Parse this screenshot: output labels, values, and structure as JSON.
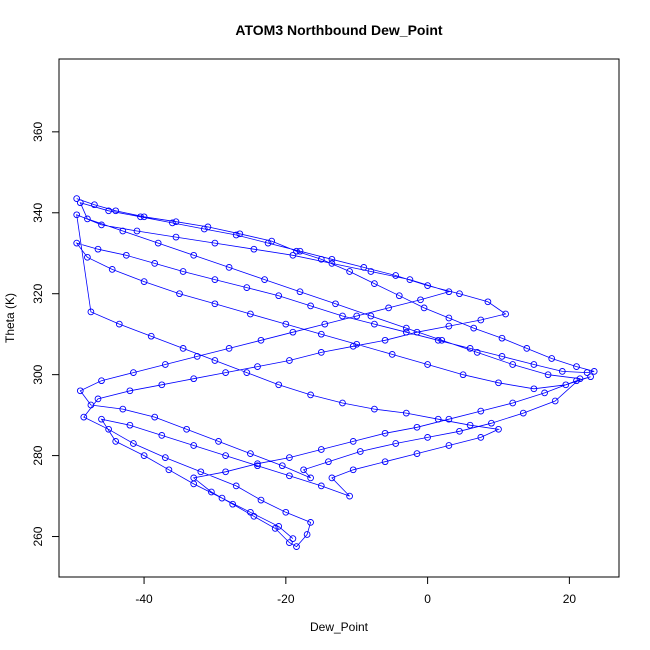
{
  "chart_data": {
    "type": "scatter",
    "title": "ATOM3 Northbound Dew_Point",
    "xlabel": "Dew_Point",
    "ylabel": "Theta (K)",
    "xlim": [
      -52,
      27
    ],
    "ylim": [
      250,
      378
    ],
    "x_ticks": [
      -40,
      -20,
      0,
      20
    ],
    "y_ticks": [
      260,
      280,
      300,
      320,
      340,
      360
    ],
    "x_tick_labels": [
      "-40",
      "-20",
      "0",
      "20"
    ],
    "y_tick_labels": [
      "260",
      "280",
      "300",
      "320",
      "340",
      "360"
    ],
    "grid": false,
    "legend": "none",
    "style": "points connected by lines (open circles)",
    "color": "#0000ff",
    "series": [
      {
        "points": [
          [
            -49.5,
            343.5
          ],
          [
            -47.0,
            342.0
          ],
          [
            -44.0,
            340.5
          ],
          [
            -40.0,
            339.0
          ],
          [
            -35.5,
            337.8
          ],
          [
            -31.0,
            336.5
          ],
          [
            -26.5,
            334.8
          ],
          [
            -22.0,
            333.0
          ],
          [
            -18.5,
            330.5
          ],
          [
            -15.0,
            328.5
          ],
          [
            -11.0,
            325.5
          ],
          [
            -7.5,
            322.5
          ],
          [
            -4.0,
            319.5
          ],
          [
            -0.5,
            316.5
          ],
          [
            3.0,
            314.0
          ],
          [
            6.5,
            311.5
          ],
          [
            10.5,
            309.0
          ],
          [
            14.0,
            306.5
          ],
          [
            17.5,
            304.0
          ],
          [
            21.0,
            302.0
          ],
          [
            23.5,
            300.8
          ],
          [
            22.5,
            300.5
          ],
          [
            19.0,
            300.8
          ],
          [
            15.0,
            302.5
          ],
          [
            10.5,
            304.5
          ],
          [
            6.0,
            306.5
          ],
          [
            1.5,
            308.5
          ],
          [
            -3.0,
            310.5
          ],
          [
            -7.5,
            312.5
          ],
          [
            -12.0,
            314.5
          ],
          [
            -16.5,
            317.0
          ],
          [
            -21.0,
            319.5
          ],
          [
            -25.5,
            321.5
          ],
          [
            -30.0,
            323.5
          ],
          [
            -34.5,
            325.5
          ],
          [
            -38.5,
            327.5
          ],
          [
            -42.5,
            329.5
          ],
          [
            -46.5,
            331.0
          ],
          [
            -49.5,
            332.5
          ],
          [
            -48.0,
            329.0
          ],
          [
            -44.5,
            326.0
          ],
          [
            -40.0,
            323.0
          ],
          [
            -35.0,
            320.0
          ],
          [
            -30.0,
            317.5
          ],
          [
            -25.0,
            315.0
          ],
          [
            -20.0,
            312.5
          ],
          [
            -15.0,
            310.0
          ],
          [
            -10.0,
            307.5
          ],
          [
            -5.0,
            305.0
          ],
          [
            0.0,
            302.5
          ],
          [
            5.0,
            300.0
          ],
          [
            10.0,
            298.0
          ],
          [
            15.0,
            296.5
          ],
          [
            19.5,
            297.5
          ],
          [
            23.0,
            299.5
          ],
          [
            21.0,
            298.5
          ],
          [
            16.5,
            295.5
          ],
          [
            12.0,
            293.0
          ],
          [
            7.5,
            291.0
          ],
          [
            3.0,
            289.0
          ],
          [
            -1.5,
            287.0
          ],
          [
            -6.0,
            285.5
          ],
          [
            -10.5,
            283.5
          ],
          [
            -15.0,
            281.5
          ],
          [
            -19.5,
            279.5
          ],
          [
            -24.0,
            278.0
          ],
          [
            -28.5,
            276.0
          ],
          [
            -33.0,
            274.5
          ],
          [
            -30.5,
            271.0
          ],
          [
            -27.5,
            268.0
          ],
          [
            -24.5,
            265.0
          ],
          [
            -21.5,
            262.0
          ],
          [
            -19.5,
            258.5
          ],
          [
            -18.5,
            257.5
          ],
          [
            -17.0,
            260.5
          ],
          [
            -16.5,
            263.5
          ],
          [
            -20.0,
            266.0
          ],
          [
            -23.5,
            269.0
          ],
          [
            -27.0,
            272.5
          ],
          [
            -32.0,
            276.0
          ],
          [
            -37.0,
            279.5
          ],
          [
            -41.5,
            283.0
          ],
          [
            -45.0,
            286.5
          ],
          [
            -48.5,
            289.5
          ],
          [
            -46.5,
            294.0
          ],
          [
            -42.0,
            296.0
          ],
          [
            -37.5,
            297.5
          ],
          [
            -33.0,
            299.0
          ],
          [
            -28.5,
            300.5
          ],
          [
            -24.0,
            302.0
          ],
          [
            -19.5,
            303.5
          ],
          [
            -15.0,
            305.5
          ],
          [
            -10.5,
            307.0
          ],
          [
            -6.0,
            308.5
          ],
          [
            -1.5,
            310.5
          ],
          [
            3.0,
            312.0
          ],
          [
            7.5,
            313.5
          ],
          [
            11.0,
            315.0
          ],
          [
            8.5,
            318.0
          ],
          [
            4.5,
            320.0
          ],
          [
            0.0,
            322.0
          ],
          [
            -4.5,
            324.5
          ],
          [
            -9.0,
            326.5
          ],
          [
            -13.5,
            328.5
          ],
          [
            -18.0,
            330.5
          ],
          [
            -22.5,
            332.5
          ],
          [
            -27.0,
            334.5
          ],
          [
            -31.5,
            336.0
          ],
          [
            -36.0,
            337.5
          ],
          [
            -40.5,
            339.0
          ],
          [
            -45.0,
            340.5
          ],
          [
            -49.0,
            342.5
          ],
          [
            -48.0,
            338.5
          ],
          [
            -43.0,
            335.5
          ],
          [
            -38.0,
            332.5
          ],
          [
            -33.0,
            329.5
          ],
          [
            -28.0,
            326.5
          ],
          [
            -23.0,
            323.5
          ],
          [
            -18.0,
            320.5
          ],
          [
            -13.0,
            317.5
          ],
          [
            -8.0,
            314.5
          ],
          [
            -3.0,
            311.5
          ],
          [
            2.0,
            308.5
          ],
          [
            7.0,
            305.5
          ],
          [
            12.0,
            302.5
          ],
          [
            17.0,
            300.0
          ],
          [
            21.5,
            299.0
          ],
          [
            18.0,
            293.5
          ],
          [
            13.5,
            290.5
          ],
          [
            9.0,
            288.0
          ],
          [
            4.5,
            286.0
          ],
          [
            0.0,
            284.5
          ],
          [
            -4.5,
            283.0
          ],
          [
            -9.5,
            281.0
          ],
          [
            -14.0,
            278.5
          ],
          [
            -17.5,
            276.5
          ],
          [
            -16.5,
            274.5
          ],
          [
            -20.5,
            277.5
          ],
          [
            -25.0,
            280.5
          ],
          [
            -29.5,
            283.5
          ],
          [
            -34.0,
            286.5
          ],
          [
            -38.5,
            289.5
          ],
          [
            -43.0,
            291.5
          ],
          [
            -47.5,
            292.5
          ],
          [
            -49.0,
            296.0
          ],
          [
            -46.0,
            298.5
          ],
          [
            -41.5,
            300.5
          ],
          [
            -37.0,
            302.5
          ],
          [
            -32.5,
            304.5
          ],
          [
            -28.0,
            306.5
          ],
          [
            -23.5,
            308.5
          ],
          [
            -19.0,
            310.5
          ],
          [
            -14.5,
            312.5
          ],
          [
            -10.0,
            314.5
          ],
          [
            -5.5,
            316.5
          ],
          [
            -1.0,
            318.5
          ],
          [
            3.0,
            320.5
          ],
          [
            -2.5,
            323.5
          ],
          [
            -8.0,
            325.5
          ],
          [
            -13.5,
            327.5
          ],
          [
            -19.0,
            329.5
          ],
          [
            -24.5,
            331.0
          ],
          [
            -30.0,
            332.5
          ],
          [
            -35.5,
            334.0
          ],
          [
            -41.0,
            335.5
          ],
          [
            -46.0,
            337.0
          ],
          [
            -49.5,
            339.5
          ],
          [
            -47.5,
            315.5
          ],
          [
            -43.5,
            312.5
          ],
          [
            -39.0,
            309.5
          ],
          [
            -34.5,
            306.5
          ],
          [
            -30.0,
            303.5
          ],
          [
            -25.5,
            300.5
          ],
          [
            -21.0,
            297.5
          ],
          [
            -16.5,
            295.0
          ],
          [
            -12.0,
            293.0
          ],
          [
            -7.5,
            291.5
          ],
          [
            -3.0,
            290.5
          ],
          [
            1.5,
            289.0
          ],
          [
            6.0,
            287.5
          ],
          [
            10.0,
            286.5
          ],
          [
            7.5,
            284.5
          ],
          [
            3.0,
            282.5
          ],
          [
            -1.5,
            280.5
          ],
          [
            -6.0,
            278.5
          ],
          [
            -10.5,
            276.5
          ],
          [
            -13.5,
            274.5
          ],
          [
            -11.0,
            270.0
          ],
          [
            -15.0,
            272.5
          ],
          [
            -19.5,
            275.0
          ],
          [
            -24.0,
            277.5
          ],
          [
            -28.5,
            280.0
          ],
          [
            -33.0,
            282.5
          ],
          [
            -37.5,
            285.0
          ],
          [
            -42.0,
            287.5
          ],
          [
            -46.0,
            289.0
          ],
          [
            -44.0,
            283.5
          ],
          [
            -40.0,
            280.0
          ],
          [
            -36.5,
            276.5
          ],
          [
            -33.0,
            273.0
          ],
          [
            -29.0,
            269.5
          ],
          [
            -25.0,
            266.0
          ],
          [
            -21.0,
            262.5
          ],
          [
            -19.0,
            259.5
          ]
        ]
      }
    ]
  }
}
